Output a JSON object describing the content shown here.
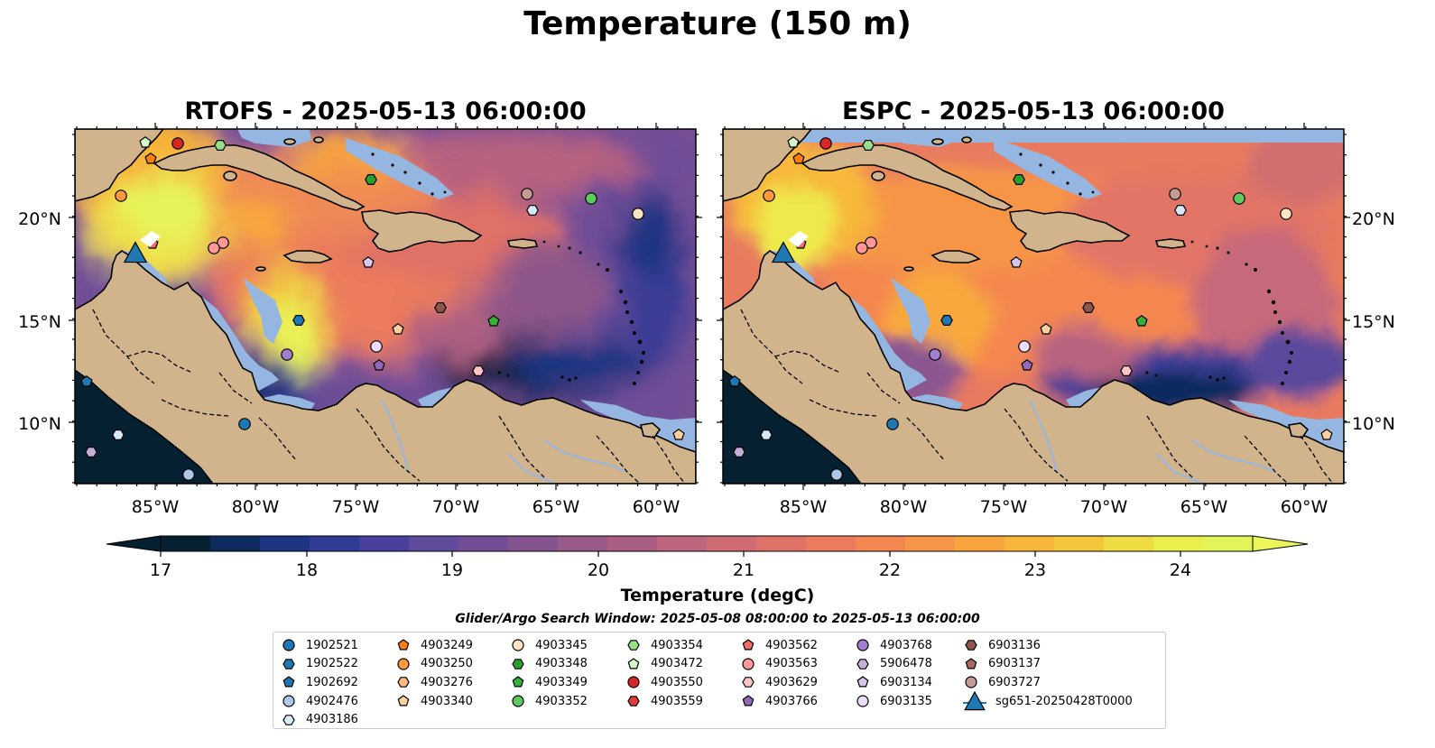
{
  "figure": {
    "title": "Temperature (150 m)",
    "panels": [
      {
        "id": "rtofs",
        "title": "RTOFS - 2025-05-13 06:00:00"
      },
      {
        "id": "espc",
        "title": "ESPC - 2025-05-13 06:00:00"
      }
    ],
    "lon_ticks": [
      "85°W",
      "80°W",
      "75°W",
      "70°W",
      "65°W",
      "60°W"
    ],
    "lat_ticks": [
      "20°N",
      "15°N",
      "10°N"
    ],
    "colors": {
      "land": "#d2b48c",
      "ocean": "#95b6e1",
      "coastline": "#000000"
    }
  },
  "colorbar": {
    "label": "Temperature (degC)",
    "ticks": [
      "17",
      "18",
      "19",
      "20",
      "21",
      "22",
      "23",
      "24"
    ],
    "colors": [
      "#052030",
      "#0e2b5f",
      "#1d3582",
      "#2f3b94",
      "#493f9c",
      "#5f4a9c",
      "#734e96",
      "#84548e",
      "#985a89",
      "#aa5e83",
      "#bd657c",
      "#ce6b73",
      "#df7268",
      "#ec7a5d",
      "#f4874f",
      "#f79546",
      "#f9a53d",
      "#f7b63a",
      "#f3c73c",
      "#eedc44",
      "#e9f04e",
      "#e3f35a"
    ],
    "min_color": "#052030",
    "max_color": "#eaf65a"
  },
  "search_window": "Glider/Argo Search Window: 2025-05-08 08:00:00 to 2025-05-13 06:00:00",
  "legend": {
    "columns": [
      [
        {
          "label": "1902521",
          "marker": "circle",
          "color": "#1f77b4"
        },
        {
          "label": "1902522",
          "marker": "hexagon",
          "color": "#1f77b4"
        },
        {
          "label": "1902692",
          "marker": "pentagon",
          "color": "#1f77b4"
        },
        {
          "label": "4902476",
          "marker": "circle",
          "color": "#aec7e8"
        },
        {
          "label": "4903186",
          "marker": "hexagon",
          "color": "#d6e9f7"
        }
      ],
      [
        {
          "label": "4903249",
          "marker": "pentagon",
          "color": "#ff7f0e"
        },
        {
          "label": "4903250",
          "marker": "circle",
          "color": "#ff9a3c"
        },
        {
          "label": "4903276",
          "marker": "hexagon",
          "color": "#ffbb78"
        },
        {
          "label": "4903340",
          "marker": "pentagon",
          "color": "#ffd09c"
        }
      ],
      [
        {
          "label": "4903345",
          "marker": "circle",
          "color": "#ffe4c4"
        },
        {
          "label": "4903348",
          "marker": "hexagon",
          "color": "#2ca02c"
        },
        {
          "label": "4903349",
          "marker": "pentagon",
          "color": "#36b336"
        },
        {
          "label": "4903352",
          "marker": "circle",
          "color": "#5fc95f"
        }
      ],
      [
        {
          "label": "4903354",
          "marker": "hexagon",
          "color": "#98df8a"
        },
        {
          "label": "4903472",
          "marker": "pentagon",
          "color": "#d4f7c9"
        },
        {
          "label": "4903550",
          "marker": "circle",
          "color": "#d62728"
        },
        {
          "label": "4903559",
          "marker": "hexagon",
          "color": "#e03c3c"
        }
      ],
      [
        {
          "label": "4903562",
          "marker": "pentagon",
          "color": "#ef6b6b"
        },
        {
          "label": "4903563",
          "marker": "circle",
          "color": "#ff9896"
        },
        {
          "label": "4903629",
          "marker": "hexagon",
          "color": "#ffc5c4"
        },
        {
          "label": "4903766",
          "marker": "pentagon",
          "color": "#9467bd"
        }
      ],
      [
        {
          "label": "4903768",
          "marker": "circle",
          "color": "#a27fd0"
        },
        {
          "label": "5906478",
          "marker": "hexagon",
          "color": "#c5b0d5"
        },
        {
          "label": "6903134",
          "marker": "pentagon",
          "color": "#d9c6ec"
        },
        {
          "label": "6903135",
          "marker": "circle",
          "color": "#eedcff"
        }
      ],
      [
        {
          "label": "6903136",
          "marker": "hexagon",
          "color": "#8c564b"
        },
        {
          "label": "6903137",
          "marker": "pentagon",
          "color": "#a66b5e"
        },
        {
          "label": "6903727",
          "marker": "circle",
          "color": "#c49c94"
        },
        {
          "label": "sg651-20250428T0000",
          "marker": "triangle",
          "color": "#1f77b4"
        }
      ]
    ]
  }
}
